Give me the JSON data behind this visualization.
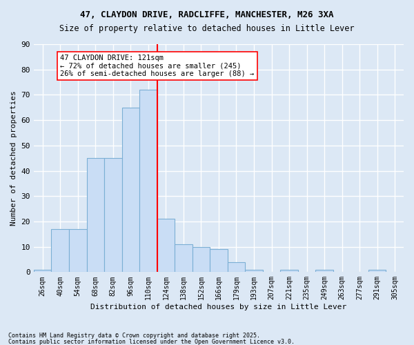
{
  "title1": "47, CLAYDON DRIVE, RADCLIFFE, MANCHESTER, M26 3XA",
  "title2": "Size of property relative to detached houses in Little Lever",
  "xlabel": "Distribution of detached houses by size in Little Lever",
  "ylabel": "Number of detached properties",
  "bin_labels": [
    "26sqm",
    "40sqm",
    "54sqm",
    "68sqm",
    "82sqm",
    "96sqm",
    "110sqm",
    "124sqm",
    "138sqm",
    "152sqm",
    "166sqm",
    "179sqm",
    "193sqm",
    "207sqm",
    "221sqm",
    "235sqm",
    "249sqm",
    "263sqm",
    "277sqm",
    "291sqm",
    "305sqm"
  ],
  "bar_heights": [
    1,
    17,
    17,
    45,
    45,
    65,
    72,
    21,
    11,
    10,
    9,
    4,
    1,
    0,
    1,
    0,
    1,
    0,
    0,
    1,
    0
  ],
  "bar_color": "#c9ddf5",
  "bar_edge_color": "#7bafd4",
  "vline_color": "red",
  "annotation_text": "47 CLAYDON DRIVE: 121sqm\n← 72% of detached houses are smaller (245)\n26% of semi-detached houses are larger (88) →",
  "annotation_box_color": "white",
  "annotation_box_edge": "red",
  "ylim": [
    0,
    90
  ],
  "yticks": [
    0,
    10,
    20,
    30,
    40,
    50,
    60,
    70,
    80,
    90
  ],
  "footer1": "Contains HM Land Registry data © Crown copyright and database right 2025.",
  "footer2": "Contains public sector information licensed under the Open Government Licence v3.0.",
  "bg_color": "#dce8f5",
  "plot_bg_color": "#dce8f5",
  "grid_color": "white"
}
